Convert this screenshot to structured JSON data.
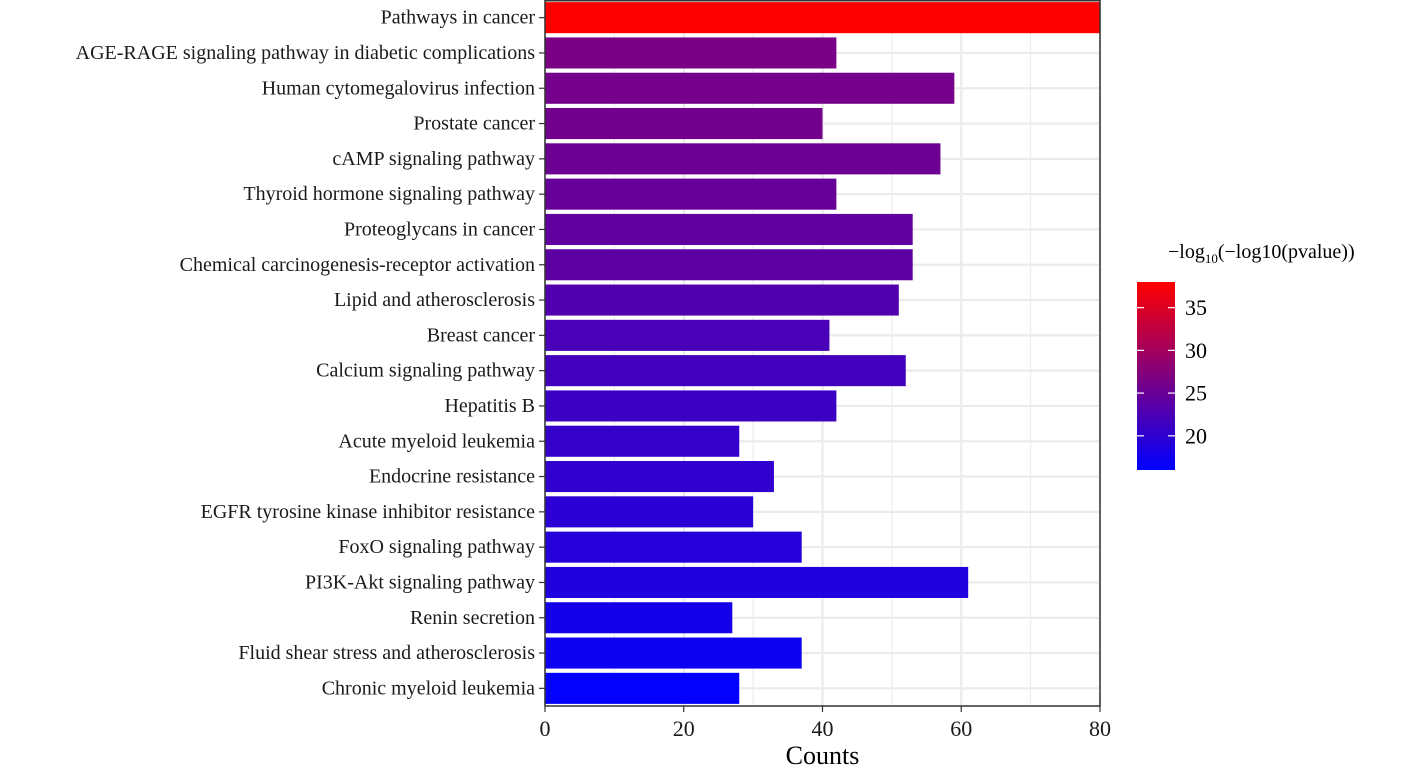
{
  "chart_data": {
    "type": "bar",
    "orientation": "horizontal",
    "xlabel": "Counts",
    "ylabel": "",
    "xlim": [
      0,
      80
    ],
    "xticks": [
      0,
      20,
      40,
      60,
      80
    ],
    "grid": true,
    "categories": [
      "Pathways in cancer",
      "AGE-RAGE signaling pathway in diabetic complications",
      "Human cytomegalovirus infection",
      "Prostate cancer",
      "cAMP signaling pathway",
      "Thyroid hormone signaling pathway",
      "Proteoglycans in cancer",
      "Chemical carcinogenesis-receptor activation",
      "Lipid and atherosclerosis",
      "Breast cancer",
      "Calcium signaling pathway",
      "Hepatitis B",
      "Acute myeloid leukemia",
      "Endocrine resistance",
      "EGFR tyrosine kinase inhibitor resistance",
      "FoxO signaling pathway",
      "PI3K-Akt signaling pathway",
      "Renin secretion",
      "Fluid shear stress and atherosclerosis",
      "Chronic myeloid leukemia"
    ],
    "values": [
      80,
      42,
      59,
      40,
      57,
      42,
      53,
      53,
      51,
      41,
      52,
      42,
      28,
      33,
      30,
      37,
      61,
      27,
      37,
      28
    ],
    "color_values": [
      38,
      26.5,
      26,
      25.8,
      25.3,
      24.8,
      24.3,
      24,
      23,
      22.3,
      21.7,
      21.1,
      20.6,
      20.1,
      19.7,
      19.2,
      18.8,
      17.8,
      17.2,
      16.3
    ],
    "legend": {
      "title_prefix": "−log",
      "title_sub": "10",
      "title_suffix": "(−log10(pvalue))",
      "range": [
        16,
        38
      ],
      "ticks": [
        20,
        25,
        30,
        35
      ],
      "low_color": "#0000ff",
      "high_color": "#ff0000",
      "placement": "right"
    }
  }
}
